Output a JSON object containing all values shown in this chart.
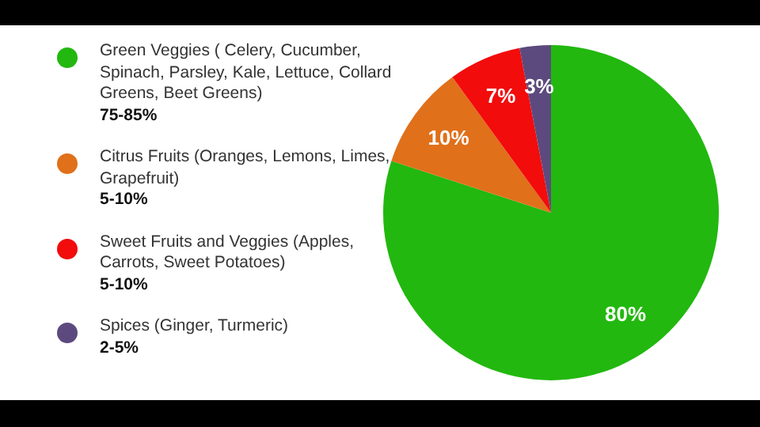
{
  "chart_data": {
    "type": "pie",
    "categories": [
      "Green Veggies ( Celery, Cucumber, Spinach, Parsley, Kale, Lettuce, Collard Greens, Beet Greens)",
      "Citrus Fruits (Oranges, Lemons, Limes, Grapefruit)",
      "Sweet Fruits and Veggies (Apples, Carrots, Sweet Potatoes)",
      "Spices (Ginger, Turmeric)"
    ],
    "values": [
      80,
      10,
      7,
      3
    ],
    "colors": [
      "#22b80f",
      "#e0701a",
      "#f20c0c",
      "#5c4a7e"
    ],
    "value_labels": [
      "80%",
      "10%",
      "7%",
      "3%"
    ],
    "annotations": [
      "75-85%",
      "5-10%",
      "5-10%",
      "2-5%"
    ],
    "legend": "left"
  }
}
